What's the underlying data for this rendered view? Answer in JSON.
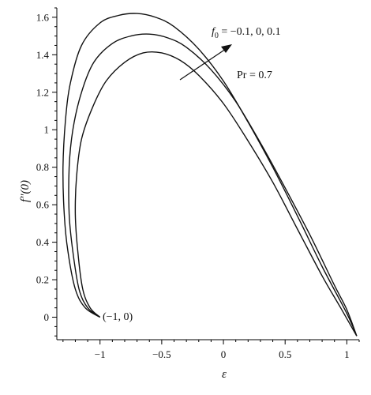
{
  "chart_data": {
    "type": "line",
    "title": "",
    "xlabel": "ε",
    "ylabel": "f″(0)",
    "xlim": [
      -1.35,
      1.1
    ],
    "ylim": [
      -0.12,
      1.65
    ],
    "grid": false,
    "x_ticks": [
      -1,
      -0.5,
      0,
      0.5,
      1
    ],
    "x_tick_labels": [
      "−1",
      "−0.5",
      "0",
      "0.5",
      "1"
    ],
    "y_ticks": [
      0,
      0.2,
      0.4,
      0.6,
      0.8,
      1,
      1.2,
      1.4,
      1.6
    ],
    "y_tick_labels": [
      "0",
      "0.2",
      "0.4",
      "0.6",
      "0.8",
      "1",
      "1.2",
      "1.4",
      "1.6"
    ],
    "series": [
      {
        "parameter": "f0 = 0.1",
        "x": [
          -1.0,
          -1.12,
          -1.2,
          -1.26,
          -1.29,
          -1.3,
          -1.28,
          -1.24,
          -1.15,
          -1.0,
          -0.85,
          -0.7,
          -0.55,
          -0.4,
          -0.2,
          0.0,
          0.2,
          0.4,
          0.6,
          0.8,
          1.0,
          1.08
        ],
        "y": [
          0.0,
          0.05,
          0.15,
          0.35,
          0.55,
          0.8,
          1.05,
          1.25,
          1.45,
          1.57,
          1.61,
          1.62,
          1.6,
          1.55,
          1.43,
          1.26,
          1.04,
          0.8,
          0.54,
          0.27,
          0.02,
          -0.1
        ]
      },
      {
        "parameter": "f0 = 0",
        "x": [
          -1.0,
          -1.1,
          -1.17,
          -1.22,
          -1.25,
          -1.25,
          -1.22,
          -1.15,
          -1.05,
          -0.9,
          -0.75,
          -0.6,
          -0.45,
          -0.3,
          -0.1,
          0.1,
          0.3,
          0.5,
          0.7,
          0.9,
          1.0,
          1.08
        ],
        "y": [
          0.0,
          0.05,
          0.15,
          0.35,
          0.55,
          0.8,
          1.0,
          1.2,
          1.36,
          1.46,
          1.5,
          1.51,
          1.49,
          1.44,
          1.32,
          1.15,
          0.93,
          0.69,
          0.44,
          0.17,
          0.04,
          -0.1
        ]
      },
      {
        "parameter": "f0 = −0.1",
        "x": [
          -1.0,
          -1.08,
          -1.14,
          -1.18,
          -1.2,
          -1.19,
          -1.15,
          -1.06,
          -0.95,
          -0.8,
          -0.65,
          -0.5,
          -0.35,
          -0.2,
          0.0,
          0.2,
          0.4,
          0.6,
          0.8,
          0.95,
          1.08
        ],
        "y": [
          0.0,
          0.05,
          0.15,
          0.35,
          0.55,
          0.75,
          0.95,
          1.12,
          1.26,
          1.36,
          1.41,
          1.41,
          1.37,
          1.29,
          1.14,
          0.94,
          0.72,
          0.47,
          0.22,
          0.05,
          -0.1
        ]
      }
    ],
    "annotations": {
      "parameter_label": "f",
      "parameter_subscript": "0",
      "parameter_values": " = −0.1, 0, 0.1",
      "prandtl": "Pr = 0.7",
      "start_point": "(−1, 0)"
    }
  }
}
